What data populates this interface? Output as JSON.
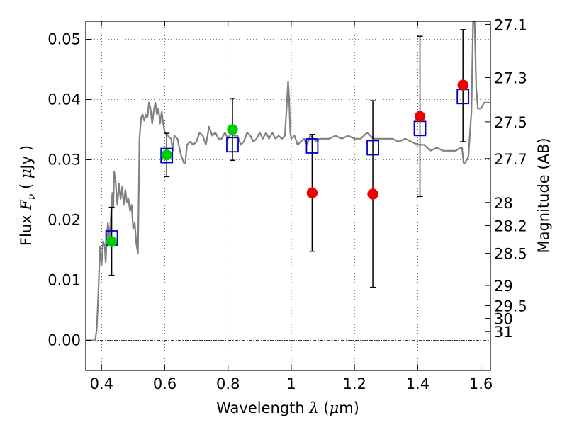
{
  "chart_data": {
    "type": "scatter",
    "xlabel_prefix": "Wavelength  ",
    "xlabel_symbol": "λ",
    "xlabel_unit_open": " (",
    "xlabel_unit_symbol": "μ",
    "xlabel_unit_close": "m)",
    "ylabel_prefix": "Flux  ",
    "ylabel_symbol": "F",
    "ylabel_sub": "ν",
    "ylabel_unit_open": "  ( ",
    "ylabel_unit_symbol": "μ",
    "ylabel_unit_close": "Jy )",
    "y2label": "Magnitude (AB)",
    "xlim": [
      0.35,
      1.63
    ],
    "ylim": [
      -0.005,
      0.053
    ],
    "x_ticks": [
      0.4,
      0.6,
      0.8,
      1.0,
      1.2,
      1.4,
      1.6
    ],
    "x_tick_labels": [
      "0.4",
      "0.6",
      "0.8",
      "1",
      "1.2",
      "1.4",
      "1.6"
    ],
    "y_ticks": [
      0.0,
      0.01,
      0.02,
      0.03,
      0.04,
      0.05
    ],
    "y_tick_labels": [
      "0.00",
      "0.01",
      "0.02",
      "0.03",
      "0.04",
      "0.05"
    ],
    "mag_ticks": [
      27.1,
      27.3,
      27.5,
      27.7,
      28,
      28.2,
      28.5,
      29,
      29.5,
      30,
      31
    ],
    "mag_tick_labels": [
      "27.1",
      "27.3",
      "27.5",
      "27.7",
      "28",
      "28.2",
      "28.5",
      "29",
      "29.5",
      "30",
      "31"
    ],
    "grid": true,
    "series": [
      {
        "name": "model-spectrum",
        "kind": "line",
        "color": "#808080",
        "points": [
          [
            0.35,
            0.0
          ],
          [
            0.38,
            0.0
          ],
          [
            0.385,
            0.002
          ],
          [
            0.39,
            0.008
          ],
          [
            0.395,
            0.0155
          ],
          [
            0.4,
            0.0125
          ],
          [
            0.405,
            0.0165
          ],
          [
            0.41,
            0.0155
          ],
          [
            0.413,
            0.013
          ],
          [
            0.417,
            0.0175
          ],
          [
            0.42,
            0.0195
          ],
          [
            0.425,
            0.017
          ],
          [
            0.43,
            0.021
          ],
          [
            0.434,
            0.0245
          ],
          [
            0.437,
            0.022
          ],
          [
            0.44,
            0.028
          ],
          [
            0.445,
            0.026
          ],
          [
            0.45,
            0.0225
          ],
          [
            0.455,
            0.026
          ],
          [
            0.46,
            0.0235
          ],
          [
            0.465,
            0.0255
          ],
          [
            0.47,
            0.0225
          ],
          [
            0.475,
            0.025
          ],
          [
            0.48,
            0.023
          ],
          [
            0.485,
            0.0235
          ],
          [
            0.49,
            0.0215
          ],
          [
            0.495,
            0.0225
          ],
          [
            0.5,
            0.0185
          ],
          [
            0.505,
            0.0195
          ],
          [
            0.51,
            0.016
          ],
          [
            0.515,
            0.0145
          ],
          [
            0.52,
            0.0335
          ],
          [
            0.525,
            0.037
          ],
          [
            0.53,
            0.0375
          ],
          [
            0.535,
            0.0365
          ],
          [
            0.54,
            0.0375
          ],
          [
            0.545,
            0.037
          ],
          [
            0.55,
            0.0395
          ],
          [
            0.555,
            0.0385
          ],
          [
            0.56,
            0.036
          ],
          [
            0.565,
            0.038
          ],
          [
            0.57,
            0.0395
          ],
          [
            0.575,
            0.0375
          ],
          [
            0.58,
            0.0385
          ],
          [
            0.585,
            0.036
          ],
          [
            0.59,
            0.038
          ],
          [
            0.595,
            0.036
          ],
          [
            0.6,
            0.0345
          ],
          [
            0.61,
            0.034
          ],
          [
            0.62,
            0.0335
          ],
          [
            0.625,
            0.0315
          ],
          [
            0.63,
            0.034
          ],
          [
            0.64,
            0.0335
          ],
          [
            0.65,
            0.031
          ],
          [
            0.66,
            0.0295
          ],
          [
            0.665,
            0.0295
          ],
          [
            0.67,
            0.0325
          ],
          [
            0.68,
            0.033
          ],
          [
            0.69,
            0.0325
          ],
          [
            0.7,
            0.033
          ],
          [
            0.71,
            0.0345
          ],
          [
            0.72,
            0.034
          ],
          [
            0.73,
            0.0325
          ],
          [
            0.74,
            0.0355
          ],
          [
            0.75,
            0.034
          ],
          [
            0.76,
            0.0345
          ],
          [
            0.77,
            0.0335
          ],
          [
            0.78,
            0.0335
          ],
          [
            0.79,
            0.0345
          ],
          [
            0.8,
            0.0335
          ],
          [
            0.81,
            0.0345
          ],
          [
            0.82,
            0.034
          ],
          [
            0.83,
            0.034
          ],
          [
            0.84,
            0.0325
          ],
          [
            0.85,
            0.033
          ],
          [
            0.86,
            0.0345
          ],
          [
            0.87,
            0.034
          ],
          [
            0.88,
            0.033
          ],
          [
            0.89,
            0.0335
          ],
          [
            0.9,
            0.0345
          ],
          [
            0.91,
            0.0335
          ],
          [
            0.92,
            0.0345
          ],
          [
            0.93,
            0.0335
          ],
          [
            0.94,
            0.0345
          ],
          [
            0.95,
            0.0335
          ],
          [
            0.96,
            0.034
          ],
          [
            0.97,
            0.0335
          ],
          [
            0.98,
            0.034
          ],
          [
            0.985,
            0.0385
          ],
          [
            0.99,
            0.043
          ],
          [
            0.993,
            0.0405
          ],
          [
            0.997,
            0.0345
          ],
          [
            1.0,
            0.0335
          ],
          [
            1.01,
            0.034
          ],
          [
            1.02,
            0.0325
          ],
          [
            1.03,
            0.033
          ],
          [
            1.04,
            0.0335
          ],
          [
            1.05,
            0.0325
          ],
          [
            1.06,
            0.034
          ],
          [
            1.07,
            0.0335
          ],
          [
            1.08,
            0.033
          ],
          [
            1.09,
            0.0335
          ],
          [
            1.1,
            0.0335
          ],
          [
            1.12,
            0.0335
          ],
          [
            1.14,
            0.034
          ],
          [
            1.16,
            0.0335
          ],
          [
            1.18,
            0.034
          ],
          [
            1.2,
            0.0335
          ],
          [
            1.22,
            0.0335
          ],
          [
            1.24,
            0.0345
          ],
          [
            1.26,
            0.0335
          ],
          [
            1.28,
            0.0335
          ],
          [
            1.3,
            0.0335
          ],
          [
            1.32,
            0.0335
          ],
          [
            1.34,
            0.033
          ],
          [
            1.36,
            0.0335
          ],
          [
            1.38,
            0.033
          ],
          [
            1.4,
            0.0325
          ],
          [
            1.42,
            0.0325
          ],
          [
            1.44,
            0.0315
          ],
          [
            1.46,
            0.032
          ],
          [
            1.48,
            0.0315
          ],
          [
            1.5,
            0.0315
          ],
          [
            1.52,
            0.0315
          ],
          [
            1.535,
            0.032
          ],
          [
            1.54,
            0.032
          ],
          [
            1.545,
            0.0295
          ],
          [
            1.55,
            0.0295
          ],
          [
            1.56,
            0.0305
          ],
          [
            1.57,
            0.038
          ],
          [
            1.575,
            0.053
          ],
          [
            1.58,
            0.053
          ],
          [
            1.585,
            0.042
          ],
          [
            1.59,
            0.0385
          ],
          [
            1.6,
            0.0385
          ],
          [
            1.61,
            0.0395
          ],
          [
            1.63,
            0.0395
          ]
        ]
      },
      {
        "name": "model-photometry",
        "kind": "open-square",
        "color": "#0000cc",
        "x": [
          0.432,
          0.606,
          0.814,
          1.066,
          1.258,
          1.407,
          1.543
        ],
        "y": [
          0.017,
          0.0307,
          0.0325,
          0.0323,
          0.032,
          0.0352,
          0.0405
        ]
      },
      {
        "name": "detections",
        "kind": "circle",
        "color": "#00cc00",
        "x": [
          0.432,
          0.606,
          0.814
        ],
        "y": [
          0.0164,
          0.0308,
          0.035
        ],
        "err_low": [
          0.0056,
          0.0036,
          0.0051
        ],
        "err_high": [
          0.0057,
          0.0036,
          0.0052
        ]
      },
      {
        "name": "non-detections",
        "kind": "circle",
        "color": "#ee0000",
        "x": [
          1.066,
          1.258,
          1.407,
          1.543
        ],
        "y": [
          0.0245,
          0.0243,
          0.0372,
          0.0424
        ],
        "err_low": [
          0.0097,
          0.0155,
          0.0133,
          0.0094
        ],
        "err_high": [
          0.0097,
          0.0155,
          0.0133,
          0.0092
        ]
      }
    ]
  }
}
